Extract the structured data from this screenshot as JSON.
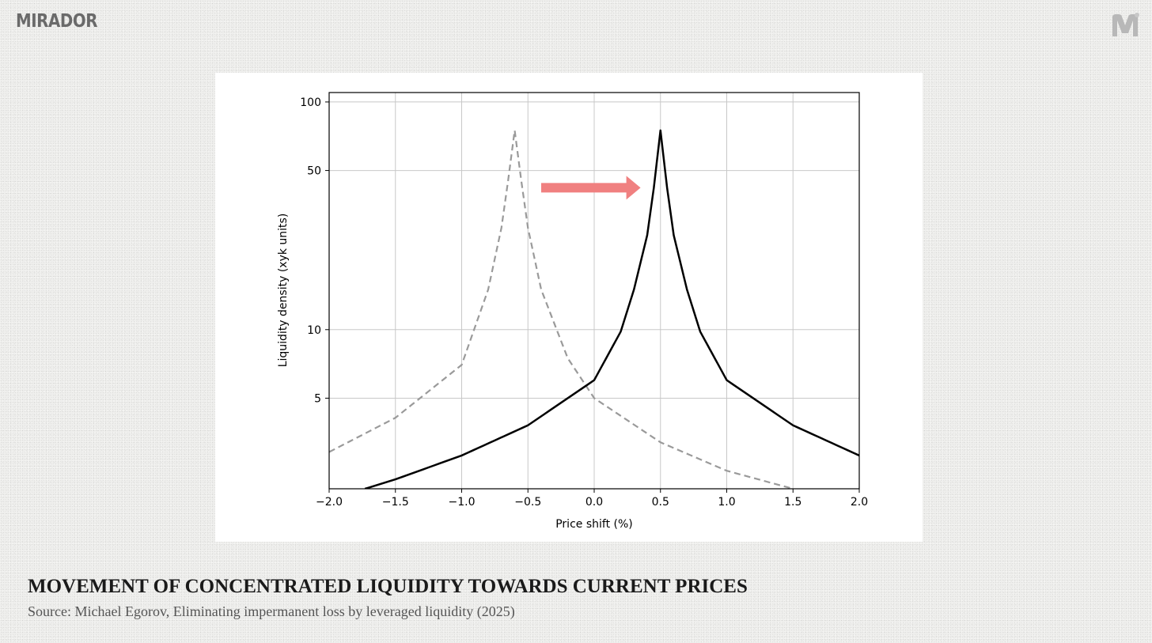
{
  "brand": {
    "name": "MIRADOR",
    "logo_icon": "mirador-m-icon"
  },
  "caption": {
    "title": "MOVEMENT OF CONCENTRATED LIQUIDITY TOWARDS CURRENT PRICES",
    "source": "Source: Michael Egorov, Eliminating impermanent loss by leveraged liquidity (2025)"
  },
  "chart_data": {
    "type": "line",
    "xlabel": "Price shift (%)",
    "ylabel": "Liquidity density (xyk units)",
    "xlim": [
      -2.0,
      2.0
    ],
    "ylim": [
      2.0,
      110
    ],
    "yscale": "log",
    "grid": true,
    "xticks": [
      -2.0,
      -1.5,
      -1.0,
      -0.5,
      0.0,
      0.5,
      1.0,
      1.5,
      2.0
    ],
    "xtick_labels": [
      "−2.0",
      "−1.5",
      "−1.0",
      "−0.5",
      "0.0",
      "0.5",
      "1.0",
      "1.5",
      "2.0"
    ],
    "yticks": [
      5,
      10,
      50,
      100
    ],
    "ytick_labels": [
      "5",
      "10",
      "50",
      "100"
    ],
    "series": [
      {
        "style": "dashed",
        "color": "#9a9a9a",
        "x": [
          -2.0,
          -1.5,
          -1.0,
          -0.8,
          -0.7,
          -0.65,
          -0.6,
          -0.55,
          -0.5,
          -0.4,
          -0.2,
          0.0,
          0.5,
          1.0,
          1.5
        ],
        "y": [
          2.9,
          4.1,
          7.0,
          15.0,
          28.0,
          45.0,
          75.0,
          45.0,
          28.0,
          15.0,
          7.5,
          5.0,
          3.2,
          2.4,
          2.0
        ]
      },
      {
        "style": "solid",
        "color": "#000000",
        "x": [
          -1.73,
          -1.5,
          -1.0,
          -0.5,
          0.0,
          0.2,
          0.3,
          0.4,
          0.45,
          0.5,
          0.55,
          0.6,
          0.7,
          0.8,
          1.0,
          1.5,
          2.0
        ],
        "y": [
          2.0,
          2.2,
          2.8,
          3.8,
          6.0,
          9.8,
          15.0,
          26.0,
          42.0,
          75.0,
          42.0,
          26.0,
          15.0,
          9.8,
          6.0,
          3.8,
          2.8
        ]
      }
    ],
    "annotation": {
      "type": "arrow",
      "color": "#f08080",
      "from": [
        -0.4,
        42
      ],
      "to": [
        0.35,
        42
      ]
    }
  }
}
